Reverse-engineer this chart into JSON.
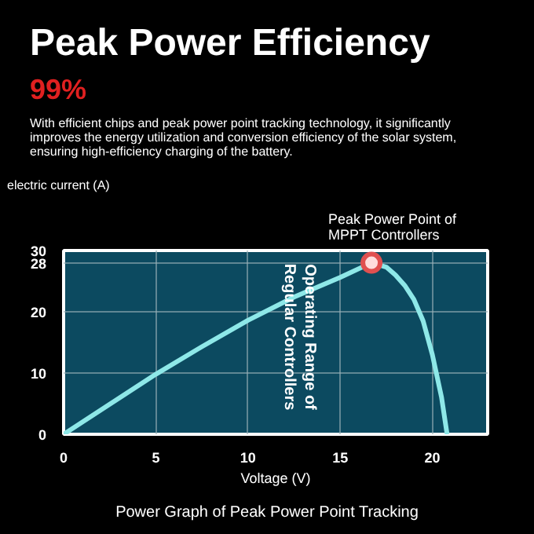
{
  "chart_data": {
    "type": "line",
    "title": "Peak Power Efficiency",
    "subtitle": "99%",
    "xlabel": "Voltage (V)",
    "ylabel": "electric current (A)",
    "x": [
      0,
      2.5,
      5,
      7.5,
      10,
      12.5,
      15,
      16.7,
      17.5,
      18,
      18.5,
      19,
      19.5,
      20,
      20.5,
      20.8
    ],
    "series": [
      {
        "color": "#8ee8e8",
        "values": [
          0,
          4.9,
          9.8,
          14.3,
          18.6,
          22.4,
          25.6,
          28,
          27.3,
          26,
          24.3,
          22,
          18.5,
          13,
          6,
          0
        ]
      },
      {
        "type": "scatter",
        "color": "#e05050",
        "marker": "circle",
        "x": [
          16.7
        ],
        "values": [
          28
        ]
      }
    ],
    "xlim": [
      0,
      23
    ],
    "ylim": [
      0,
      30
    ],
    "xticks": [
      0,
      5,
      10,
      15,
      20
    ],
    "yticks": [
      0,
      10,
      20,
      28,
      30
    ],
    "grid": true,
    "annotations": [
      "With efficient chips and peak power point tracking technology, it significantly improves the energy utilization and conversion efficiency of the solar system, ensuring high-efficiency charging of the battery.",
      "Peak Power Point of MPPT Controllers",
      "Operating Range of Regular Controllers",
      "Power Graph of Peak Power Point Tracking"
    ]
  }
}
